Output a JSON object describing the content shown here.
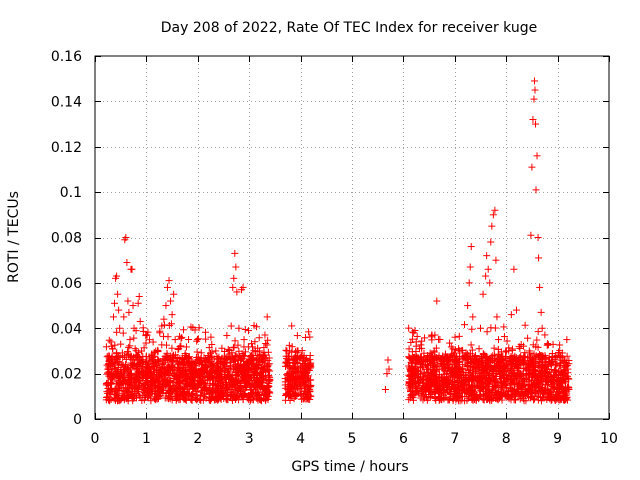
{
  "chart_data": {
    "type": "scatter",
    "title": "Day 208 of 2022, Rate Of TEC Index for receiver kuge",
    "xlabel": "GPS time / hours",
    "ylabel": "ROTI / TECUs",
    "xlim": [
      0,
      10
    ],
    "ylim": [
      0,
      0.16
    ],
    "x_ticks": [
      0,
      1,
      2,
      3,
      4,
      5,
      6,
      7,
      8,
      9,
      10
    ],
    "x_tick_labels": [
      "0",
      "1",
      "2",
      "3",
      "4",
      "5",
      "6",
      "7",
      "8",
      "9",
      "10"
    ],
    "y_ticks": [
      0,
      0.02,
      0.04,
      0.06,
      0.08,
      0.1,
      0.12,
      0.14,
      0.16
    ],
    "y_tick_labels": [
      "0",
      "0.02",
      "0.04",
      "0.06",
      "0.08",
      "0.1",
      "0.12",
      "0.14",
      "0.16"
    ],
    "grid": true,
    "marker": "+",
    "marker_color": "#ff0000",
    "series": [
      {
        "name": "ROTI",
        "points": [
          [
            0.22,
            0.015
          ],
          [
            0.25,
            0.022
          ],
          [
            0.28,
            0.012
          ],
          [
            0.3,
            0.018
          ],
          [
            0.32,
            0.026
          ],
          [
            0.34,
            0.031
          ],
          [
            0.36,
            0.045
          ],
          [
            0.38,
            0.051
          ],
          [
            0.4,
            0.062
          ],
          [
            0.42,
            0.063
          ],
          [
            0.44,
            0.055
          ],
          [
            0.46,
            0.048
          ],
          [
            0.48,
            0.04
          ],
          [
            0.5,
            0.033
          ],
          [
            0.52,
            0.02
          ],
          [
            0.54,
            0.016
          ],
          [
            0.56,
            0.045
          ],
          [
            0.58,
            0.079
          ],
          [
            0.6,
            0.08
          ],
          [
            0.62,
            0.069
          ],
          [
            0.64,
            0.052
          ],
          [
            0.66,
            0.047
          ],
          [
            0.68,
            0.035
          ],
          [
            0.7,
            0.066
          ],
          [
            0.72,
            0.066
          ],
          [
            0.74,
            0.05
          ],
          [
            0.76,
            0.04
          ],
          [
            0.78,
            0.031
          ],
          [
            0.8,
            0.028
          ],
          [
            0.82,
            0.022
          ],
          [
            0.84,
            0.051
          ],
          [
            0.86,
            0.054
          ],
          [
            0.88,
            0.043
          ],
          [
            0.9,
            0.025
          ],
          [
            0.92,
            0.018
          ],
          [
            0.95,
            0.014
          ],
          [
            0.98,
            0.021
          ],
          [
            1.0,
            0.024
          ],
          [
            1.03,
            0.016
          ],
          [
            1.06,
            0.012
          ],
          [
            1.1,
            0.02
          ],
          [
            1.14,
            0.022
          ],
          [
            1.18,
            0.018
          ],
          [
            1.22,
            0.03
          ],
          [
            1.26,
            0.038
          ],
          [
            1.3,
            0.041
          ],
          [
            1.34,
            0.044
          ],
          [
            1.38,
            0.05
          ],
          [
            1.41,
            0.058
          ],
          [
            1.44,
            0.061
          ],
          [
            1.47,
            0.052
          ],
          [
            1.5,
            0.046
          ],
          [
            1.53,
            0.055
          ],
          [
            1.56,
            0.035
          ],
          [
            1.6,
            0.025
          ],
          [
            1.65,
            0.018
          ],
          [
            1.7,
            0.013
          ],
          [
            1.75,
            0.009
          ],
          [
            1.8,
            0.015
          ],
          [
            1.85,
            0.02
          ],
          [
            1.9,
            0.024
          ],
          [
            1.95,
            0.019
          ],
          [
            2.0,
            0.014
          ],
          [
            2.05,
            0.017
          ],
          [
            2.1,
            0.021
          ],
          [
            2.15,
            0.026
          ],
          [
            2.2,
            0.028
          ],
          [
            2.25,
            0.018
          ],
          [
            2.3,
            0.012
          ],
          [
            2.35,
            0.03
          ],
          [
            2.4,
            0.022
          ],
          [
            2.45,
            0.016
          ],
          [
            2.5,
            0.024
          ],
          [
            2.55,
            0.027
          ],
          [
            2.6,
            0.019
          ],
          [
            2.65,
            0.041
          ],
          [
            2.68,
            0.058
          ],
          [
            2.7,
            0.062
          ],
          [
            2.72,
            0.073
          ],
          [
            2.74,
            0.067
          ],
          [
            2.76,
            0.056
          ],
          [
            2.8,
            0.04
          ],
          [
            2.85,
            0.057
          ],
          [
            2.88,
            0.058
          ],
          [
            2.9,
            0.035
          ],
          [
            2.95,
            0.025
          ],
          [
            3.0,
            0.018
          ],
          [
            3.05,
            0.015
          ],
          [
            3.1,
            0.022
          ],
          [
            3.15,
            0.02
          ],
          [
            3.2,
            0.03
          ],
          [
            3.25,
            0.025
          ],
          [
            3.3,
            0.013
          ],
          [
            3.35,
            0.045
          ],
          [
            3.4,
            0.017
          ],
          [
            3.7,
            0.015
          ],
          [
            3.75,
            0.02
          ],
          [
            3.8,
            0.012
          ],
          [
            3.85,
            0.025
          ],
          [
            3.9,
            0.018
          ],
          [
            3.95,
            0.03
          ],
          [
            4.0,
            0.021
          ],
          [
            4.05,
            0.016
          ],
          [
            4.1,
            0.026
          ],
          [
            4.15,
            0.019
          ],
          [
            4.2,
            0.023
          ],
          [
            5.65,
            0.013
          ],
          [
            5.68,
            0.02
          ],
          [
            5.7,
            0.026
          ],
          [
            5.72,
            0.022
          ],
          [
            6.1,
            0.015
          ],
          [
            6.15,
            0.025
          ],
          [
            6.2,
            0.038
          ],
          [
            6.25,
            0.034
          ],
          [
            6.3,
            0.02
          ],
          [
            6.35,
            0.012
          ],
          [
            6.4,
            0.029
          ],
          [
            6.45,
            0.022
          ],
          [
            6.5,
            0.018
          ],
          [
            6.55,
            0.037
          ],
          [
            6.6,
            0.03
          ],
          [
            6.65,
            0.052
          ],
          [
            6.9,
            0.012
          ],
          [
            6.95,
            0.02
          ],
          [
            7.0,
            0.025
          ],
          [
            7.05,
            0.018
          ],
          [
            7.1,
            0.03
          ],
          [
            7.15,
            0.022
          ],
          [
            7.2,
            0.015
          ],
          [
            7.25,
            0.05
          ],
          [
            7.28,
            0.06
          ],
          [
            7.3,
            0.067
          ],
          [
            7.32,
            0.076
          ],
          [
            7.35,
            0.045
          ],
          [
            7.4,
            0.028
          ],
          [
            7.45,
            0.02
          ],
          [
            7.5,
            0.04
          ],
          [
            7.55,
            0.055
          ],
          [
            7.6,
            0.063
          ],
          [
            7.62,
            0.072
          ],
          [
            7.65,
            0.066
          ],
          [
            7.68,
            0.06
          ],
          [
            7.7,
            0.078
          ],
          [
            7.72,
            0.085
          ],
          [
            7.75,
            0.09
          ],
          [
            7.78,
            0.092
          ],
          [
            7.8,
            0.07
          ],
          [
            7.82,
            0.045
          ],
          [
            7.85,
            0.035
          ],
          [
            7.9,
            0.025
          ],
          [
            7.95,
            0.018
          ],
          [
            8.0,
            0.022
          ],
          [
            8.05,
            0.03
          ],
          [
            8.1,
            0.046
          ],
          [
            8.15,
            0.066
          ],
          [
            8.2,
            0.048
          ],
          [
            8.25,
            0.02
          ],
          [
            8.3,
            0.015
          ],
          [
            8.35,
            0.025
          ],
          [
            8.4,
            0.018
          ],
          [
            8.45,
            0.03
          ],
          [
            8.48,
            0.081
          ],
          [
            8.5,
            0.111
          ],
          [
            8.52,
            0.132
          ],
          [
            8.54,
            0.141
          ],
          [
            8.55,
            0.149
          ],
          [
            8.56,
            0.145
          ],
          [
            8.57,
            0.13
          ],
          [
            8.58,
            0.101
          ],
          [
            8.6,
            0.116
          ],
          [
            8.62,
            0.08
          ],
          [
            8.63,
            0.071
          ],
          [
            8.65,
            0.058
          ],
          [
            8.68,
            0.047
          ],
          [
            8.7,
            0.04
          ],
          [
            8.75,
            0.025
          ],
          [
            8.8,
            0.018
          ],
          [
            8.85,
            0.012
          ],
          [
            9.05,
            0.015
          ],
          [
            9.1,
            0.02
          ],
          [
            9.12,
            0.025
          ],
          [
            9.15,
            0.018
          ],
          [
            9.18,
            0.035
          ],
          [
            9.2,
            0.022
          ],
          [
            9.22,
            0.013
          ]
        ]
      }
    ]
  }
}
